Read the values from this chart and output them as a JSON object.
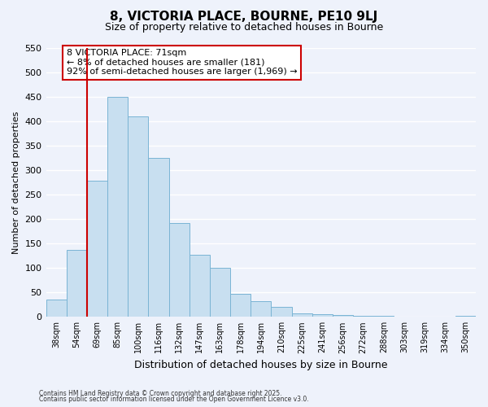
{
  "title": "8, VICTORIA PLACE, BOURNE, PE10 9LJ",
  "subtitle": "Size of property relative to detached houses in Bourne",
  "xlabel": "Distribution of detached houses by size in Bourne",
  "ylabel": "Number of detached properties",
  "bar_color": "#c8dff0",
  "bar_edge_color": "#7ab4d4",
  "categories": [
    "38sqm",
    "54sqm",
    "69sqm",
    "85sqm",
    "100sqm",
    "116sqm",
    "132sqm",
    "147sqm",
    "163sqm",
    "178sqm",
    "194sqm",
    "210sqm",
    "225sqm",
    "241sqm",
    "256sqm",
    "272sqm",
    "288sqm",
    "303sqm",
    "319sqm",
    "334sqm",
    "350sqm"
  ],
  "values": [
    35,
    137,
    278,
    450,
    410,
    325,
    192,
    127,
    100,
    47,
    32,
    20,
    7,
    6,
    4,
    2,
    2,
    1,
    1,
    1,
    2
  ],
  "ylim": [
    0,
    550
  ],
  "yticks": [
    0,
    50,
    100,
    150,
    200,
    250,
    300,
    350,
    400,
    450,
    500,
    550
  ],
  "vline_index": 2,
  "vline_color": "#cc0000",
  "annotation_title": "8 VICTORIA PLACE: 71sqm",
  "annotation_line1": "← 8% of detached houses are smaller (181)",
  "annotation_line2": "92% of semi-detached houses are larger (1,969) →",
  "annotation_box_color": "#ffffff",
  "annotation_box_edge": "#cc0000",
  "footer1": "Contains HM Land Registry data © Crown copyright and database right 2025.",
  "footer2": "Contains public sector information licensed under the Open Government Licence v3.0.",
  "background_color": "#eef2fb",
  "grid_color": "#ffffff"
}
